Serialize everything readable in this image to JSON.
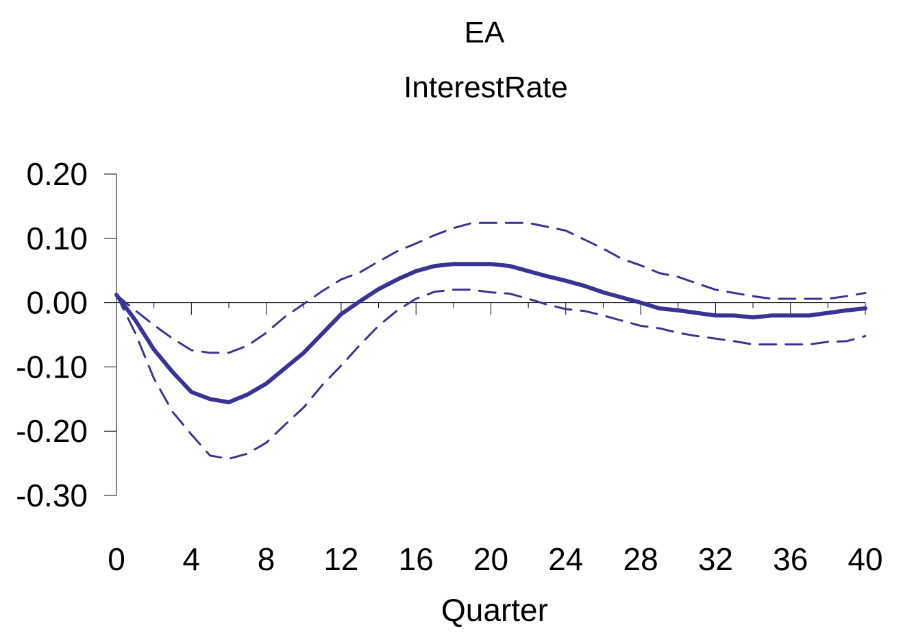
{
  "chart_data": {
    "type": "line",
    "title": "EA",
    "subtitle": "InterestRate",
    "xlabel": "Quarter",
    "ylabel": "",
    "xlim": [
      0,
      40
    ],
    "ylim": [
      -0.3,
      0.2
    ],
    "x_ticks": [
      0,
      4,
      8,
      12,
      16,
      20,
      24,
      28,
      32,
      36,
      40
    ],
    "x_tick_labels": [
      "0",
      "4",
      "8",
      "12",
      "16",
      "20",
      "24",
      "28",
      "32",
      "36",
      "40"
    ],
    "y_ticks": [
      0.2,
      0.1,
      0.0,
      -0.1,
      -0.2,
      -0.3
    ],
    "y_tick_labels": [
      "0.20",
      "0.10",
      "0.00",
      "-0.10",
      "-0.20",
      "-0.30"
    ],
    "grid": false,
    "legend": "none",
    "line_color": "#3b3394",
    "x": [
      0,
      1,
      2,
      3,
      4,
      5,
      6,
      7,
      8,
      9,
      10,
      11,
      12,
      13,
      14,
      15,
      16,
      17,
      18,
      19,
      20,
      21,
      22,
      23,
      24,
      25,
      26,
      27,
      28,
      29,
      30,
      31,
      32,
      33,
      34,
      35,
      36,
      37,
      38,
      39,
      40
    ],
    "series": [
      {
        "style": "solid",
        "values": [
          0.012,
          -0.027,
          -0.073,
          -0.108,
          -0.139,
          -0.15,
          -0.155,
          -0.143,
          -0.126,
          -0.102,
          -0.078,
          -0.048,
          -0.018,
          0.002,
          0.021,
          0.036,
          0.049,
          0.057,
          0.06,
          0.06,
          0.06,
          0.057,
          0.049,
          0.041,
          0.034,
          0.026,
          0.016,
          0.008,
          0.0,
          -0.009,
          -0.012,
          -0.016,
          -0.02,
          -0.02,
          -0.023,
          -0.02,
          -0.02,
          -0.02,
          -0.016,
          -0.012,
          -0.009
        ]
      },
      {
        "style": "dashed",
        "values": [
          0.012,
          -0.012,
          -0.035,
          -0.056,
          -0.074,
          -0.078,
          -0.078,
          -0.067,
          -0.047,
          -0.022,
          -0.002,
          0.018,
          0.036,
          0.047,
          0.064,
          0.08,
          0.092,
          0.105,
          0.116,
          0.124,
          0.124,
          0.124,
          0.124,
          0.118,
          0.112,
          0.098,
          0.084,
          0.068,
          0.058,
          0.046,
          0.04,
          0.03,
          0.02,
          0.015,
          0.01,
          0.006,
          0.006,
          0.006,
          0.006,
          0.01,
          0.015
        ]
      },
      {
        "style": "dashed",
        "values": [
          0.012,
          -0.047,
          -0.118,
          -0.17,
          -0.205,
          -0.238,
          -0.243,
          -0.235,
          -0.218,
          -0.19,
          -0.163,
          -0.128,
          -0.098,
          -0.066,
          -0.036,
          -0.012,
          0.006,
          0.017,
          0.02,
          0.02,
          0.016,
          0.014,
          0.006,
          -0.003,
          -0.01,
          -0.013,
          -0.02,
          -0.028,
          -0.036,
          -0.04,
          -0.047,
          -0.052,
          -0.056,
          -0.06,
          -0.065,
          -0.065,
          -0.065,
          -0.065,
          -0.061,
          -0.06,
          -0.052
        ]
      }
    ]
  }
}
